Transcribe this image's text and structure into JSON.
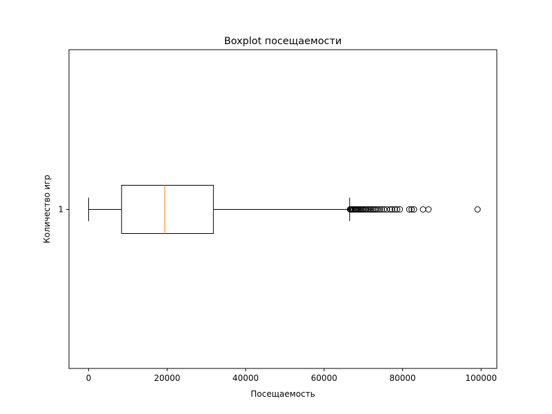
{
  "chart_data": {
    "type": "boxplot",
    "orientation": "horizontal",
    "title": "Boxplot посещаемости",
    "xlabel": "Посещаемость",
    "ylabel": "Количество игр",
    "xlim": [
      -5000,
      104000
    ],
    "x_ticks": [
      0,
      20000,
      40000,
      60000,
      80000,
      100000
    ],
    "x_tick_labels": [
      "0",
      "20000",
      "40000",
      "60000",
      "80000",
      "100000"
    ],
    "y_tick_labels": [
      "1"
    ],
    "box": {
      "position": 1,
      "whisker_low": 0,
      "q1": 8400,
      "median": 19400,
      "q3": 31800,
      "whisker_high": 66500
    },
    "outliers": [
      66600,
      66800,
      67000,
      67300,
      67500,
      67800,
      68000,
      68300,
      68600,
      68900,
      69200,
      69500,
      69800,
      70100,
      70500,
      70800,
      71200,
      71600,
      72000,
      72400,
      72800,
      73200,
      73700,
      74200,
      74700,
      75300,
      76000,
      76800,
      77300,
      78000,
      78600,
      79300,
      81700,
      82300,
      82900,
      85200,
      86600,
      99100
    ],
    "colors": {
      "box": "#000000",
      "median": "#ff7f0e",
      "outlier": "#000000"
    }
  }
}
